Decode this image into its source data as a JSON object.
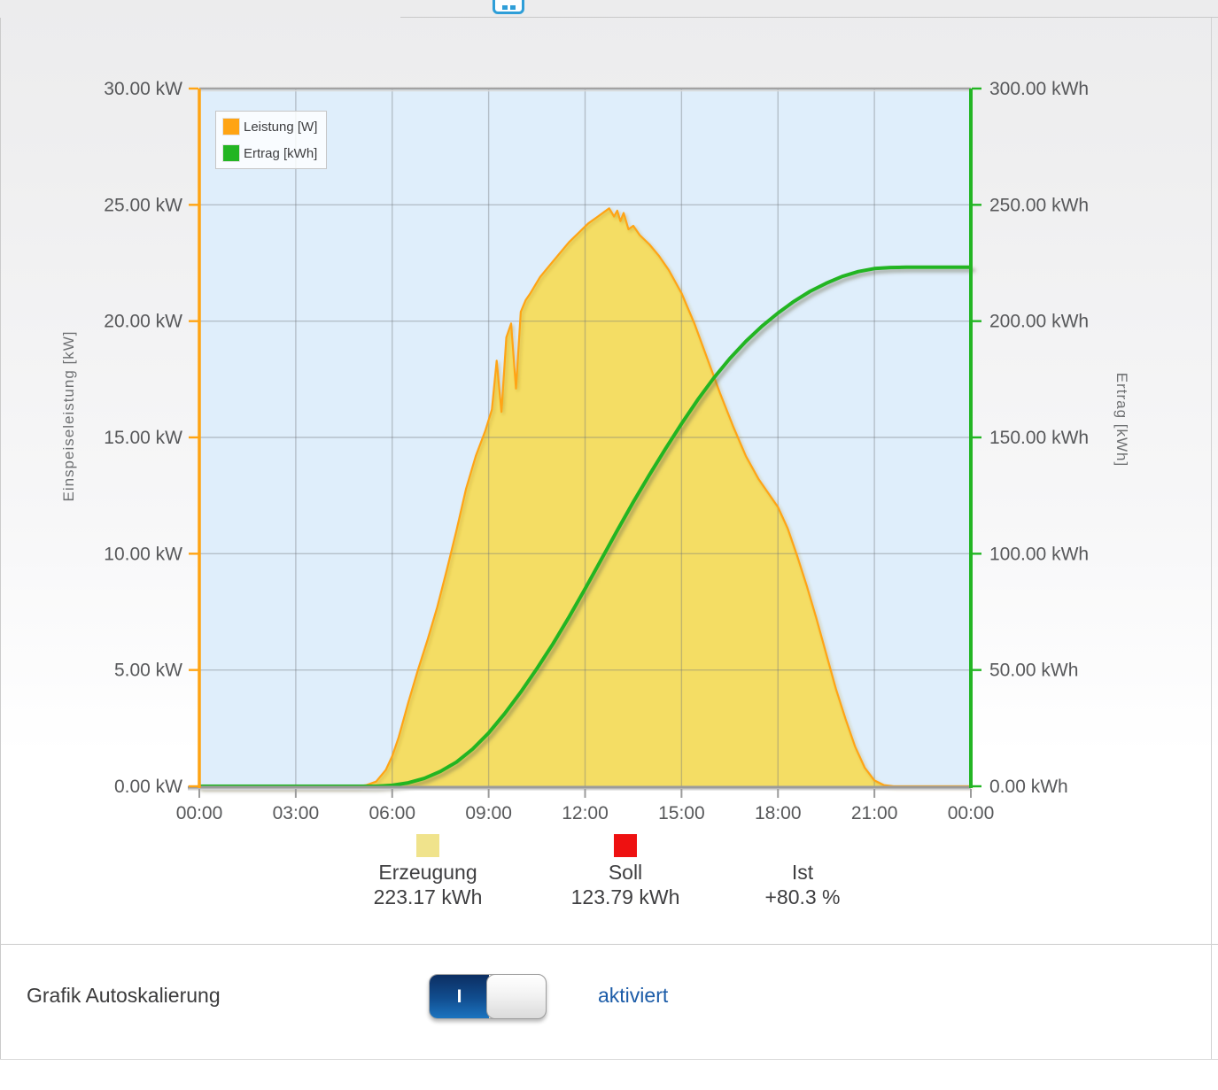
{
  "topbar": {
    "icon": "calendar-icon"
  },
  "chart": {
    "left_axis_title": "Einspeiseleistung [kW]",
    "right_axis_title": "Ertrag [kWh]",
    "legend": [
      {
        "label": "Leistung [W]",
        "color": "#FFA413"
      },
      {
        "label": "Ertrag [kWh]",
        "color": "#23B523"
      }
    ]
  },
  "chart_data": {
    "type": "area",
    "title": "",
    "plot_bg": "#DFEEFB",
    "grid": true,
    "x_axis": {
      "range_hours": [
        0,
        24
      ],
      "tick_hours": [
        0,
        3,
        6,
        9,
        12,
        15,
        18,
        21,
        24
      ],
      "tick_labels": [
        "00:00",
        "03:00",
        "06:00",
        "09:00",
        "12:00",
        "15:00",
        "18:00",
        "21:00",
        "00:00"
      ]
    },
    "y_left": {
      "title": "Einspeiseleistung [kW]",
      "range": [
        0,
        30
      ],
      "tick_values": [
        0,
        5,
        10,
        15,
        20,
        25,
        30
      ],
      "tick_labels": [
        "0.00 kW",
        "5.00 kW",
        "10.00 kW",
        "15.00 kW",
        "20.00 kW",
        "25.00 kW",
        "30.00 kW"
      ],
      "axis_color": "#FFA413"
    },
    "y_right": {
      "title": "Ertrag [kWh]",
      "range": [
        0,
        300
      ],
      "tick_values": [
        0,
        50,
        100,
        150,
        200,
        250,
        300
      ],
      "tick_labels": [
        "0.00 kWh",
        "50.00 kWh",
        "100.00 kWh",
        "150.00 kWh",
        "200.00 kWh",
        "250.00 kWh",
        "300.00 kWh"
      ],
      "axis_color": "#23B523"
    },
    "series": [
      {
        "name": "Leistung [W]",
        "type": "area",
        "axis": "left",
        "color": "#FFA413",
        "fill": "#F4DD64",
        "points": [
          [
            0,
            0
          ],
          [
            4.9,
            0
          ],
          [
            5.2,
            0.05
          ],
          [
            5.5,
            0.2
          ],
          [
            5.8,
            0.7
          ],
          [
            6,
            1.3
          ],
          [
            6.2,
            2.1
          ],
          [
            6.5,
            3.6
          ],
          [
            6.8,
            5
          ],
          [
            7.1,
            6.3
          ],
          [
            7.4,
            7.7
          ],
          [
            7.7,
            9.3
          ],
          [
            8,
            11
          ],
          [
            8.3,
            12.8
          ],
          [
            8.6,
            14.2
          ],
          [
            8.9,
            15.3
          ],
          [
            9.1,
            16.2
          ],
          [
            9.25,
            18.3
          ],
          [
            9.4,
            16.1
          ],
          [
            9.55,
            19.3
          ],
          [
            9.7,
            19.9
          ],
          [
            9.85,
            17.1
          ],
          [
            10,
            20.4
          ],
          [
            10.15,
            20.9
          ],
          [
            10.3,
            21.2
          ],
          [
            10.6,
            21.9
          ],
          [
            10.9,
            22.4
          ],
          [
            11.2,
            22.9
          ],
          [
            11.5,
            23.4
          ],
          [
            11.8,
            23.8
          ],
          [
            12.1,
            24.2
          ],
          [
            12.4,
            24.5
          ],
          [
            12.6,
            24.7
          ],
          [
            12.75,
            24.85
          ],
          [
            12.9,
            24.5
          ],
          [
            13,
            24.75
          ],
          [
            13.1,
            24.3
          ],
          [
            13.2,
            24.65
          ],
          [
            13.35,
            23.95
          ],
          [
            13.5,
            24.1
          ],
          [
            13.7,
            23.7
          ],
          [
            14,
            23.3
          ],
          [
            14.3,
            22.8
          ],
          [
            14.6,
            22.2
          ],
          [
            15,
            21.2
          ],
          [
            15.4,
            19.9
          ],
          [
            15.8,
            18.4
          ],
          [
            16.2,
            16.9
          ],
          [
            16.6,
            15.5
          ],
          [
            17,
            14.2
          ],
          [
            17.4,
            13.2
          ],
          [
            17.8,
            12.4
          ],
          [
            18,
            12
          ],
          [
            18.3,
            11.1
          ],
          [
            18.6,
            9.9
          ],
          [
            18.9,
            8.6
          ],
          [
            19.2,
            7.2
          ],
          [
            19.5,
            5.7
          ],
          [
            19.8,
            4.2
          ],
          [
            20.1,
            2.9
          ],
          [
            20.4,
            1.7
          ],
          [
            20.7,
            0.8
          ],
          [
            21,
            0.25
          ],
          [
            21.3,
            0.05
          ],
          [
            21.6,
            0
          ],
          [
            24,
            0
          ]
        ]
      },
      {
        "name": "Ertrag [kWh]",
        "type": "line",
        "axis": "right",
        "color": "#23B523",
        "points": [
          [
            0,
            0
          ],
          [
            5.5,
            0
          ],
          [
            6,
            0.4
          ],
          [
            6.5,
            1.5
          ],
          [
            7,
            3.4
          ],
          [
            7.5,
            6.4
          ],
          [
            8,
            10.4
          ],
          [
            8.5,
            16
          ],
          [
            9,
            22.9
          ],
          [
            9.5,
            31.3
          ],
          [
            10,
            40.5
          ],
          [
            10.5,
            50.6
          ],
          [
            11,
            61.2
          ],
          [
            11.5,
            72.8
          ],
          [
            12,
            84.9
          ],
          [
            12.5,
            97.4
          ],
          [
            13,
            110
          ],
          [
            13.5,
            122.2
          ],
          [
            14,
            133.9
          ],
          [
            14.5,
            145.1
          ],
          [
            15,
            155.9
          ],
          [
            15.5,
            166.1
          ],
          [
            16,
            175.5
          ],
          [
            16.5,
            183.9
          ],
          [
            17,
            191.3
          ],
          [
            17.5,
            197.8
          ],
          [
            18,
            203.5
          ],
          [
            18.5,
            208.5
          ],
          [
            19,
            212.8
          ],
          [
            19.5,
            216.3
          ],
          [
            20,
            219.2
          ],
          [
            20.5,
            221.3
          ],
          [
            21,
            222.6
          ],
          [
            21.5,
            223.05
          ],
          [
            22,
            223.17
          ],
          [
            24,
            223.17
          ]
        ]
      },
      {
        "name": "Soll",
        "type": "hline",
        "axis": "right",
        "color": "#EC2227",
        "value": 123.79,
        "x_range_hours": [
          0.1,
          23.7
        ]
      }
    ]
  },
  "summary": {
    "items": [
      {
        "swatch": "#F0E38C",
        "label": "Erzeugung",
        "value": "223.17 kWh"
      },
      {
        "swatch": "#EE1111",
        "label": "Soll",
        "value": "123.79 kWh"
      },
      {
        "swatch": null,
        "label": "Ist",
        "value": "+80.3 %"
      }
    ]
  },
  "autoscale": {
    "label": "Grafik Autoskalierung",
    "toggle_on_label": "I",
    "status": "aktiviert",
    "enabled": true
  }
}
